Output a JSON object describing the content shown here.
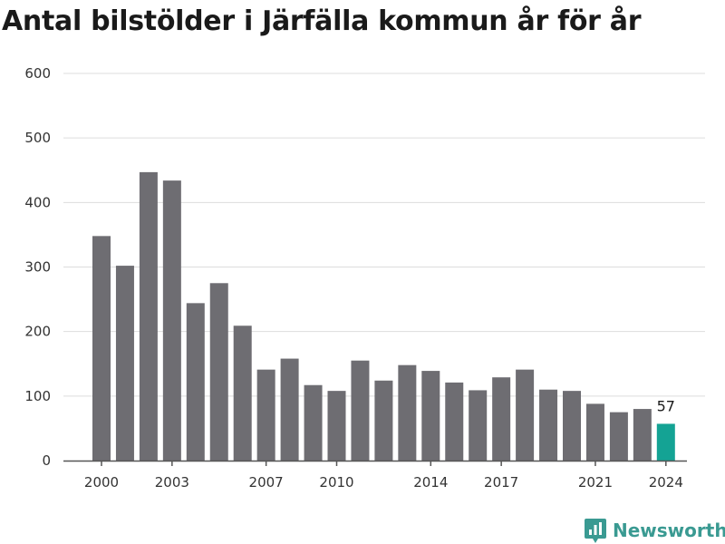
{
  "chart_data": {
    "type": "bar",
    "title": "Antal bilstölder i Järfälla kommun år för år",
    "xlabel": "",
    "ylabel": "",
    "ylim": [
      0,
      600
    ],
    "yticks": [
      0,
      100,
      200,
      300,
      400,
      500,
      600
    ],
    "xtick_labels": [
      "2000",
      "2003",
      "2007",
      "2010",
      "2014",
      "2017",
      "2021",
      "2024"
    ],
    "categories": [
      "2000",
      "2001",
      "2002",
      "2003",
      "2004",
      "2005",
      "2006",
      "2007",
      "2008",
      "2009",
      "2010",
      "2011",
      "2012",
      "2013",
      "2014",
      "2015",
      "2016",
      "2017",
      "2018",
      "2019",
      "2020",
      "2021",
      "2022",
      "2023",
      "2024"
    ],
    "values": [
      348,
      302,
      447,
      434,
      244,
      275,
      209,
      141,
      158,
      117,
      108,
      155,
      124,
      148,
      139,
      121,
      109,
      129,
      141,
      110,
      108,
      88,
      75,
      80,
      57
    ],
    "highlight_category": "2024",
    "highlight_label": "57",
    "grid": true,
    "colors": {
      "bar": "#6e6d72",
      "highlight": "#14a394",
      "grid": "#dddddd",
      "axis": "#555555"
    }
  },
  "brand": {
    "name": "Newsworthy",
    "icon": "newsworthy-chart-icon",
    "color": "#3a9a92"
  }
}
